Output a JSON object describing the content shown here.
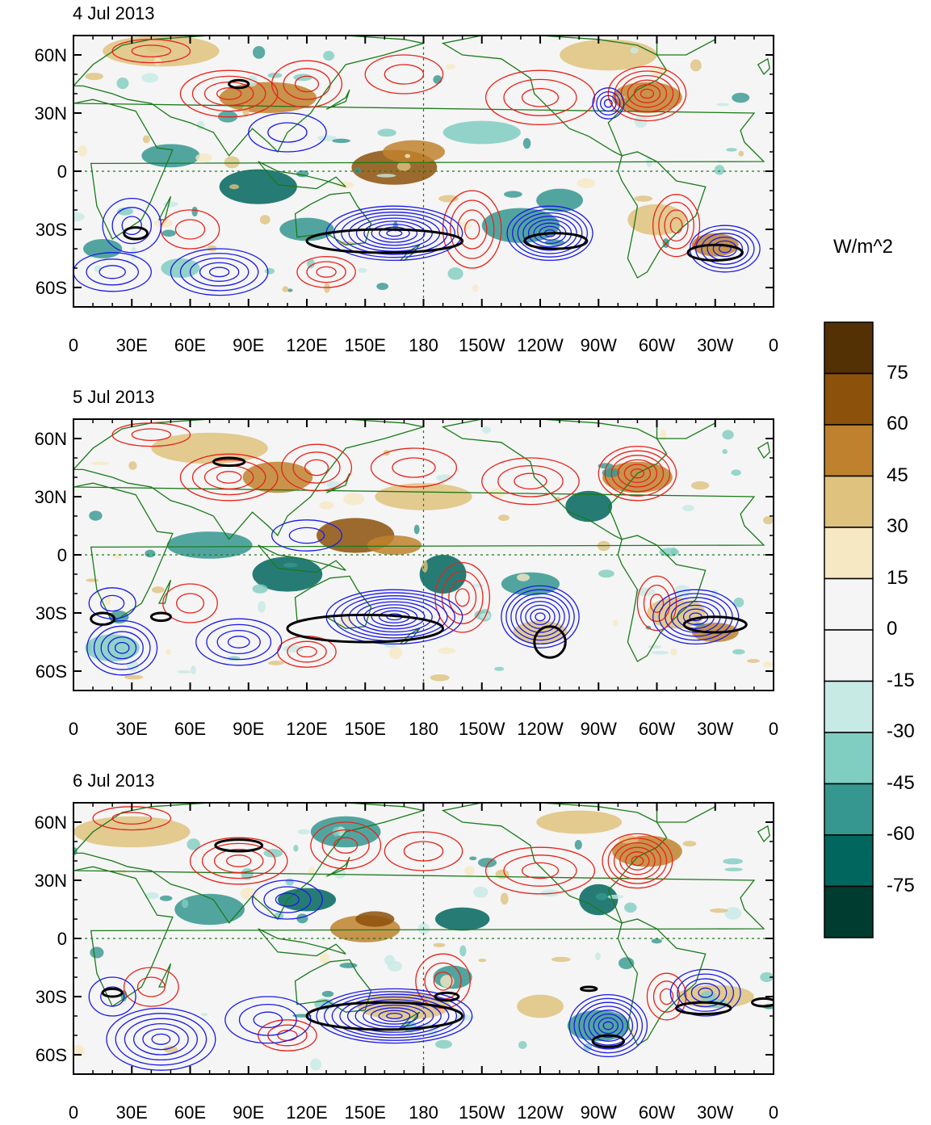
{
  "panels": [
    {
      "title": "4 Jul 2013"
    },
    {
      "title": "5 Jul 2013"
    },
    {
      "title": "6 Jul 2013"
    }
  ],
  "axes": {
    "lat_labels": [
      "60N",
      "30N",
      "0",
      "30S",
      "60S"
    ],
    "lon_labels": [
      "0",
      "30E",
      "60E",
      "90E",
      "120E",
      "150E",
      "180",
      "150W",
      "120W",
      "90W",
      "60W",
      "30W",
      "0"
    ]
  },
  "colorbar": {
    "unit": "W/m^2",
    "levels": [
      "75",
      "60",
      "45",
      "30",
      "15",
      "0",
      "-15",
      "-30",
      "-45",
      "-60",
      "-75"
    ],
    "colors": [
      "#543005",
      "#8c510a",
      "#bf812d",
      "#dfc27d",
      "#f6e8c3",
      "#f5f5f5",
      "#f5f5f5",
      "#c7eae5",
      "#80cdc1",
      "#35978f",
      "#01665e",
      "#003c30"
    ]
  },
  "style": {
    "coast_color": "#1a7a1a",
    "positive_contour_color": "#e8221a",
    "negative_contour_color": "#1a1ae6",
    "highlight_contour_color": "#000000"
  }
}
